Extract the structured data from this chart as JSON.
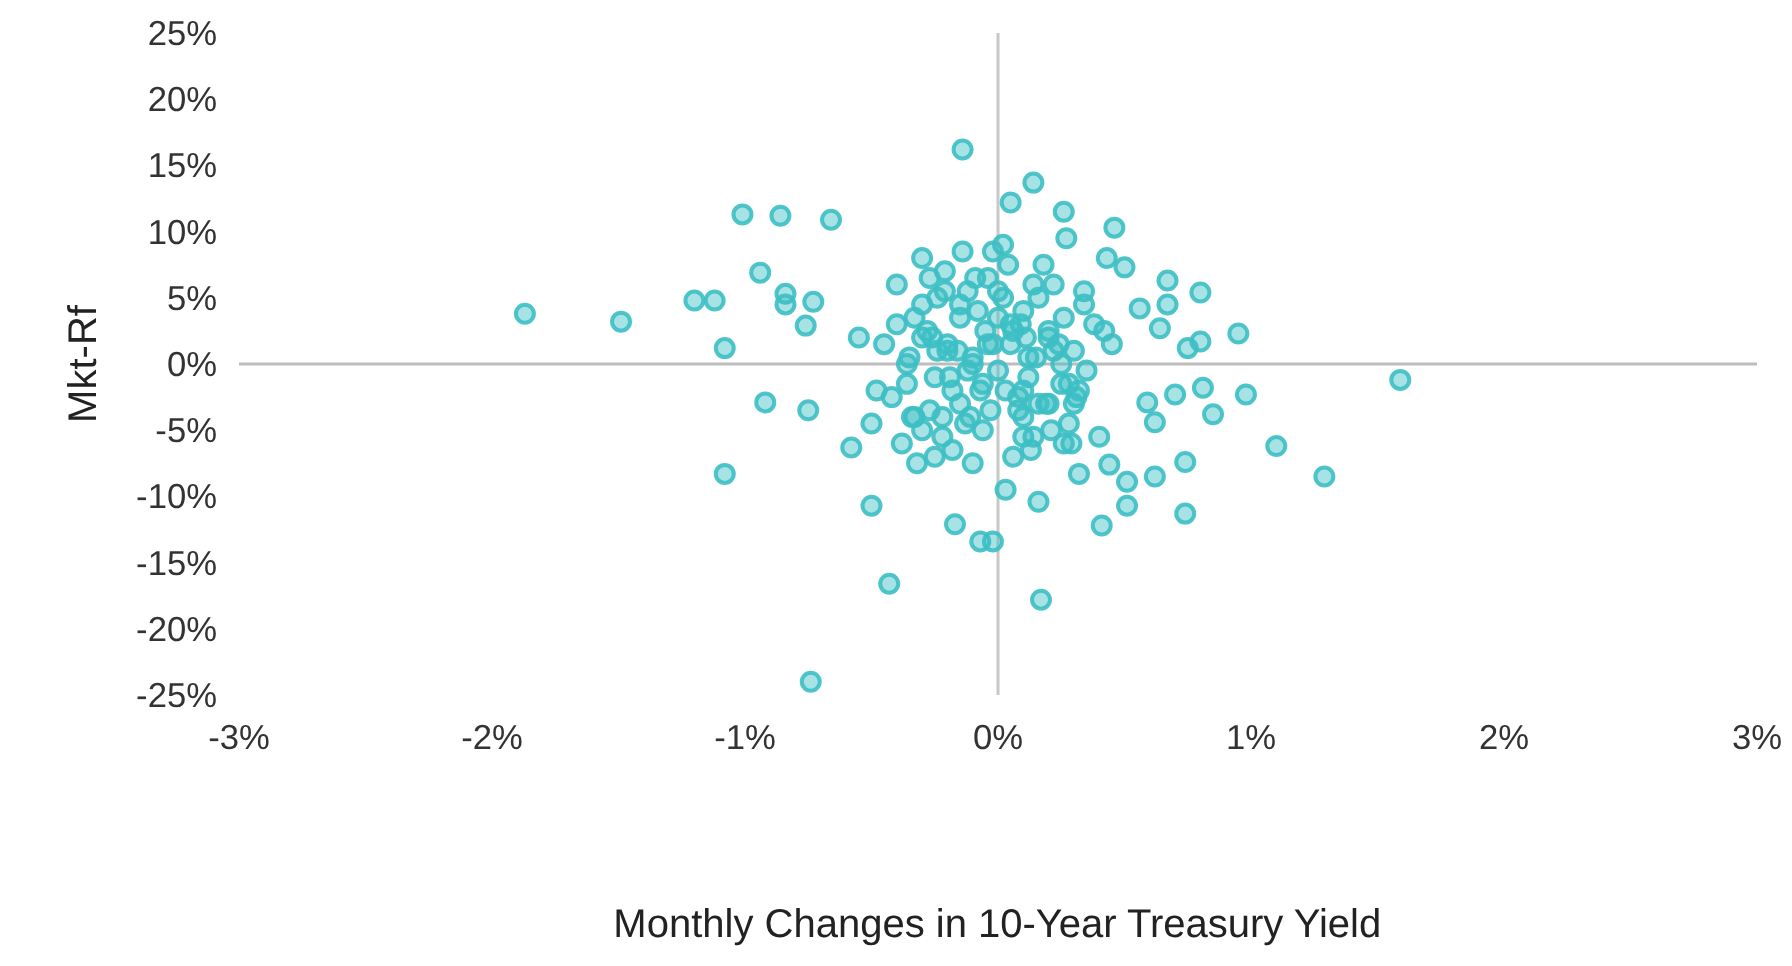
{
  "chart_data": {
    "type": "scatter",
    "xlabel": "Monthly Changes in 10-Year Treasury Yield",
    "ylabel": "Mkt-Rf",
    "xlim": [
      -3,
      3
    ],
    "ylim": [
      -25,
      25
    ],
    "xticks": [
      {
        "value": -3,
        "label": "-3%"
      },
      {
        "value": -2,
        "label": "-2%"
      },
      {
        "value": -1,
        "label": "-1%"
      },
      {
        "value": 0,
        "label": "0%"
      },
      {
        "value": 1,
        "label": "1%"
      },
      {
        "value": 2,
        "label": "2%"
      },
      {
        "value": 3,
        "label": "3%"
      }
    ],
    "yticks": [
      {
        "value": -25,
        "label": "-25%"
      },
      {
        "value": -20,
        "label": "-20%"
      },
      {
        "value": -15,
        "label": "-15%"
      },
      {
        "value": -10,
        "label": "-10%"
      },
      {
        "value": -5,
        "label": "-5%"
      },
      {
        "value": 0,
        "label": "0%"
      },
      {
        "value": 5,
        "label": "5%"
      },
      {
        "value": 10,
        "label": "10%"
      },
      {
        "value": 15,
        "label": "15%"
      },
      {
        "value": 20,
        "label": "20%"
      },
      {
        "value": 25,
        "label": "25%"
      }
    ],
    "grid": false,
    "marker": "circle",
    "ref_lines": [
      {
        "axis": "x",
        "value": 0,
        "color": "#c8c8c8"
      },
      {
        "axis": "y",
        "value": 0,
        "color": "#bdbdbd"
      }
    ],
    "series": [
      {
        "color": "#3cbfc4",
        "x": [
          -1.87,
          -1.49,
          -1.2,
          -1.12,
          -1.01,
          -0.86,
          -0.66,
          -0.94,
          -1.08,
          -0.84,
          -0.84,
          -0.76,
          -0.73,
          -0.14,
          -0.92,
          -0.75,
          -1.08,
          -0.5,
          -0.58,
          -0.43,
          -0.74,
          -0.17,
          -0.07,
          -0.02,
          0.14,
          0.05,
          0.26,
          0.46,
          0.27,
          0.67,
          0.8,
          0.67,
          0.95,
          0.8,
          0.75,
          1.59,
          0.43,
          0.5,
          0.56,
          0.64,
          0.98,
          1.1,
          1.29,
          0.81,
          0.85,
          0.74,
          0.74,
          0.51,
          0.41,
          0.17,
          0.62,
          0.51,
          0.44,
          0.32,
          0.16,
          0.03,
          0.62,
          0.59,
          0.7,
          -0.45,
          -0.4,
          -0.35,
          -0.3,
          -0.25,
          -0.2,
          -0.15,
          -0.1,
          -0.05,
          0.0,
          0.05,
          0.1,
          0.15,
          0.2,
          0.25,
          0.3,
          0.35,
          -0.42,
          -0.36,
          -0.3,
          -0.24,
          -0.18,
          -0.12,
          -0.06,
          0.02,
          0.08,
          0.14,
          0.2,
          0.26,
          0.32,
          0.38,
          -0.4,
          -0.33,
          -0.27,
          -0.21,
          -0.15,
          -0.09,
          -0.03,
          0.04,
          0.1,
          0.16,
          0.22,
          0.28,
          0.34,
          -0.38,
          -0.3,
          -0.22,
          -0.14,
          -0.06,
          0.02,
          0.1,
          0.18,
          0.26,
          0.34,
          -0.32,
          -0.25,
          -0.18,
          -0.1,
          -0.02,
          0.06,
          0.13,
          0.21,
          0.29,
          -0.28,
          -0.2,
          -0.12,
          -0.04,
          0.05,
          0.12,
          0.2,
          -0.22,
          -0.1,
          0.0,
          0.1,
          0.22,
          -0.3,
          -0.15,
          0.08,
          0.3,
          -0.55,
          -0.5,
          0.45,
          0.4,
          -0.48,
          0.42,
          -0.36,
          -0.26,
          -0.16,
          -0.08,
          0.03,
          0.12,
          0.24,
          -0.33,
          -0.19,
          -0.02,
          0.16,
          0.28,
          -0.27,
          -0.13,
          0.06,
          0.19,
          -0.21,
          -0.07,
          0.09,
          0.25,
          -0.34,
          -0.11,
          0.0,
          0.14,
          0.31,
          -0.24,
          -0.04,
          0.11
        ],
        "values": [
          3.8,
          3.2,
          4.8,
          4.8,
          11.3,
          11.2,
          10.9,
          6.9,
          1.2,
          5.3,
          4.5,
          2.9,
          4.7,
          16.2,
          -2.9,
          -3.5,
          -8.3,
          -10.7,
          -6.3,
          -16.6,
          -24.0,
          -12.1,
          -13.4,
          -13.4,
          13.7,
          12.2,
          11.5,
          10.3,
          9.5,
          6.3,
          5.4,
          4.5,
          2.3,
          1.7,
          1.2,
          -1.2,
          8.0,
          7.3,
          4.2,
          2.7,
          -2.3,
          -6.2,
          -8.5,
          -1.8,
          -3.8,
          -7.4,
          -11.3,
          -10.7,
          -12.2,
          -17.8,
          -8.5,
          -8.9,
          -7.6,
          -8.3,
          -10.4,
          -9.5,
          -4.4,
          -2.9,
          -2.3,
          1.5,
          3.0,
          0.5,
          2.0,
          -1.0,
          1.0,
          3.5,
          0.0,
          2.5,
          -0.5,
          1.5,
          4.0,
          0.5,
          2.0,
          -1.5,
          1.0,
          -0.5,
          -2.5,
          -1.5,
          4.5,
          5.0,
          -2.0,
          5.5,
          -1.5,
          5.0,
          -2.5,
          6.0,
          -3.0,
          3.5,
          -2.0,
          3.0,
          6.0,
          -4.0,
          -3.5,
          7.0,
          -3.0,
          6.5,
          -3.5,
          7.5,
          -4.0,
          -3.0,
          6.0,
          -4.5,
          5.5,
          -6.0,
          8.0,
          -5.5,
          8.5,
          -5.0,
          9.0,
          -5.5,
          7.5,
          -6.0,
          4.5,
          -7.5,
          -7.0,
          -6.5,
          -7.5,
          8.5,
          -7.0,
          -6.5,
          -5.0,
          -6.0,
          2.5,
          1.5,
          -0.5,
          1.5,
          3.0,
          -1.0,
          2.5,
          -4.0,
          0.5,
          3.5,
          -2.0,
          1.0,
          -5.0,
          4.5,
          -3.5,
          -3.0,
          2.0,
          -4.5,
          1.5,
          -5.5,
          -2.0,
          2.5,
          0.0,
          2.0,
          1.0,
          4.0,
          -2.0,
          0.5,
          1.5,
          3.5,
          -1.0,
          1.5,
          5.0,
          -1.5,
          6.5,
          -4.5,
          2.5,
          -3.0,
          5.5,
          -2.0,
          3.0,
          0.0,
          -4.0,
          -4.0,
          5.5,
          -5.5,
          -2.5,
          1.0,
          6.5,
          2.0
        ]
      }
    ]
  }
}
